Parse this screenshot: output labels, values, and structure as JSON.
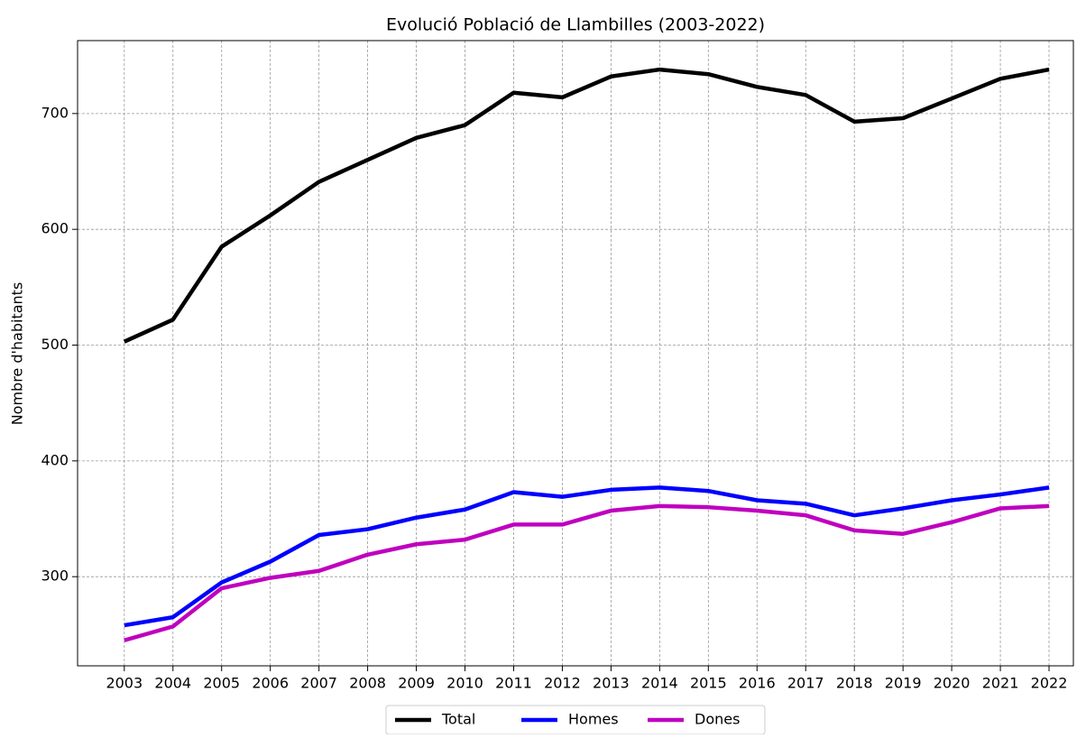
{
  "chart_data": {
    "type": "line",
    "title": "Evolució Població de Llambilles (2003-2022)",
    "y_label": "Nombre d'habitants",
    "x": [
      2003,
      2004,
      2005,
      2006,
      2007,
      2008,
      2009,
      2010,
      2011,
      2012,
      2013,
      2014,
      2015,
      2016,
      2017,
      2018,
      2019,
      2020,
      2021,
      2022
    ],
    "series": [
      {
        "name": "Total",
        "color": "#000000",
        "values": [
          503,
          522,
          585,
          612,
          641,
          660,
          679,
          690,
          718,
          714,
          732,
          738,
          734,
          723,
          716,
          693,
          696,
          713,
          730,
          738
        ]
      },
      {
        "name": "Homes",
        "color": "#0000ff",
        "values": [
          258,
          265,
          295,
          313,
          336,
          341,
          351,
          358,
          373,
          369,
          375,
          377,
          374,
          366,
          363,
          353,
          359,
          366,
          371,
          377
        ]
      },
      {
        "name": "Dones",
        "color": "#bf00bf",
        "values": [
          245,
          257,
          290,
          299,
          305,
          319,
          328,
          332,
          345,
          345,
          357,
          361,
          360,
          357,
          353,
          340,
          337,
          347,
          359,
          361
        ]
      }
    ],
    "xlim": [
      2002.04,
      2022.5
    ],
    "xticks": [
      2003,
      2004,
      2005,
      2006,
      2007,
      2008,
      2009,
      2010,
      2011,
      2012,
      2013,
      2014,
      2015,
      2016,
      2017,
      2018,
      2019,
      2020,
      2021,
      2022
    ],
    "ylim": [
      223,
      763
    ],
    "yticks": [
      300,
      400,
      500,
      600,
      700
    ],
    "grid": true,
    "legend": "bottom"
  }
}
